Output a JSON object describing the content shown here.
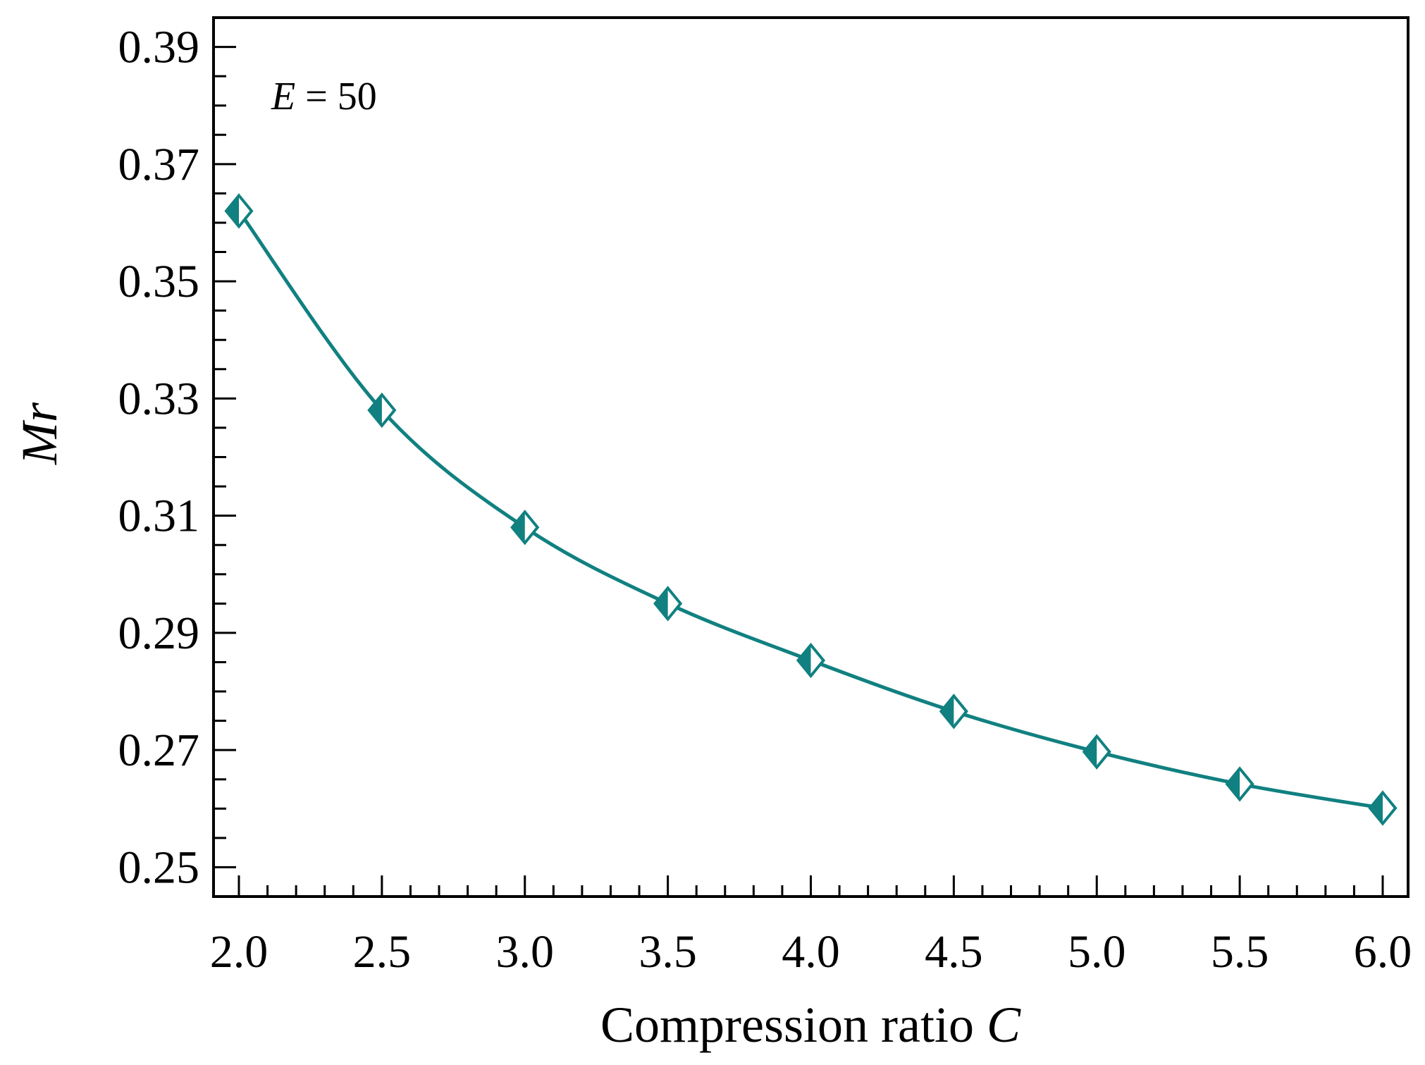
{
  "chart_data": {
    "type": "line",
    "title": "",
    "xlabel": "Compression ratio",
    "xlabel_symbol": "C",
    "ylabel": "Mr",
    "annotation_symbol": "E",
    "annotation_value": " = 50",
    "xlim": [
      2.0,
      6.0
    ],
    "ylim": [
      0.245,
      0.395
    ],
    "x_ticks": [
      2.0,
      2.5,
      3.0,
      3.5,
      4.0,
      4.5,
      5.0,
      5.5,
      6.0
    ],
    "x_tick_labels": [
      "2.0",
      "2.5",
      "3.0",
      "3.5",
      "4.0",
      "4.5",
      "5.0",
      "5.5",
      "6.0"
    ],
    "y_ticks": [
      0.25,
      0.27,
      0.29,
      0.31,
      0.33,
      0.35,
      0.37,
      0.39
    ],
    "y_tick_labels": [
      "0.25",
      "0.27",
      "0.29",
      "0.31",
      "0.33",
      "0.35",
      "0.37",
      "0.39"
    ],
    "grid": false,
    "series": [
      {
        "name": "Mr",
        "color": "#118080",
        "marker": "half-filled-diamond",
        "x": [
          2.0,
          2.5,
          3.0,
          3.5,
          4.0,
          4.5,
          5.0,
          5.5,
          6.0
        ],
        "values": [
          0.362,
          0.328,
          0.308,
          0.295,
          0.2853,
          0.2766,
          0.2697,
          0.2642,
          0.2601
        ]
      }
    ]
  }
}
